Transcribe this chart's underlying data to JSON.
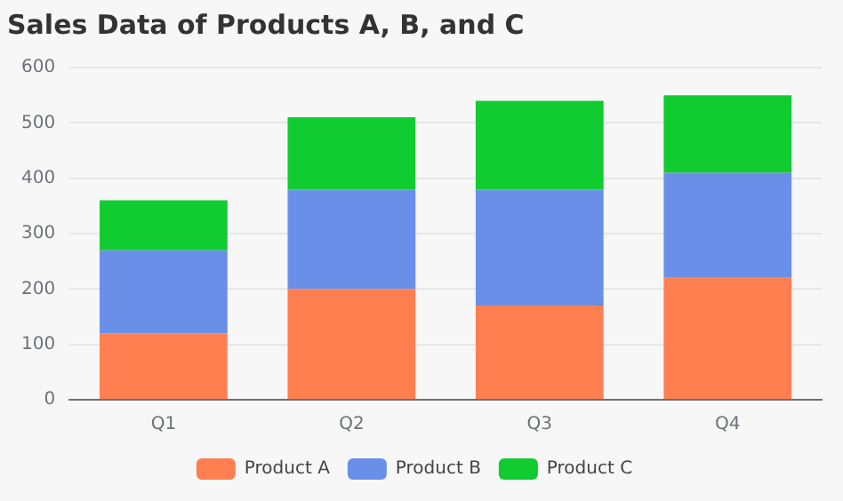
{
  "chart_data": {
    "type": "bar",
    "title": "Sales Data of Products A, B, and C",
    "categories": [
      "Q1",
      "Q2",
      "Q3",
      "Q4"
    ],
    "series": [
      {
        "name": "Product A",
        "color": "#ff7f50",
        "values": [
          120,
          200,
          170,
          220
        ]
      },
      {
        "name": "Product B",
        "color": "#6a8fe8",
        "values": [
          150,
          180,
          210,
          190
        ]
      },
      {
        "name": "Product C",
        "color": "#10cc30",
        "values": [
          90,
          130,
          160,
          140
        ]
      }
    ],
    "stacked": true,
    "ylim": [
      0,
      600
    ],
    "yticks": [
      0,
      100,
      200,
      300,
      400,
      500,
      600
    ],
    "grid": "y",
    "legend": "bottom"
  }
}
